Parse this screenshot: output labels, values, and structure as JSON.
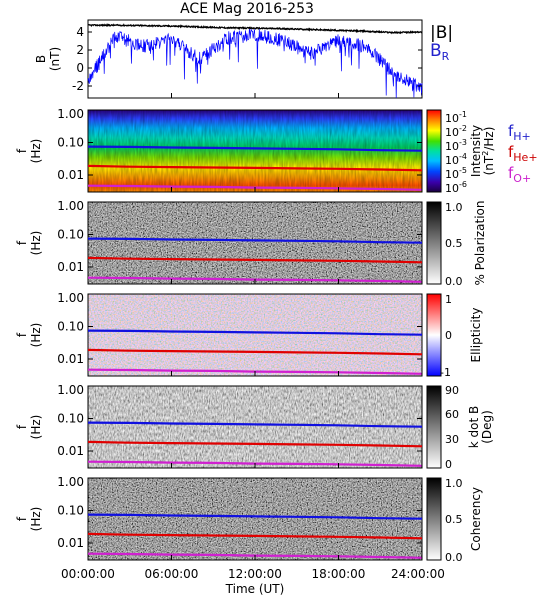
{
  "title": "ACE Mag 2016-253",
  "x_axis": {
    "label": "Time (UT)",
    "ticks": [
      "00:00:00",
      "06:00:00",
      "12:00:00",
      "18:00:00",
      "24:00:00"
    ]
  },
  "legend_top": {
    "b_total": "|B|",
    "b_r": "B",
    "b_r_sub": "R"
  },
  "freq_legend": [
    {
      "base": "f",
      "sub": "H+",
      "color": "#2222cc"
    },
    {
      "base": "f",
      "sub": "He+",
      "color": "#cc0000"
    },
    {
      "base": "f",
      "sub": "O+",
      "color": "#cc22cc"
    }
  ],
  "panels": {
    "b_field": {
      "ylabel_top": "B",
      "ylabel_bottom": "(nT)",
      "yticks": [
        "4",
        "2",
        "0",
        "-2"
      ]
    },
    "freq_ticks": [
      "1.00",
      "0.10",
      "0.01"
    ],
    "freq_label_top": "f",
    "freq_label_bottom": "(Hz)",
    "intensity": {
      "cbar_ticks": [
        "10",
        "10",
        "10",
        "10",
        "10",
        "10"
      ],
      "cbar_exps": [
        "-1",
        "-2",
        "-3",
        "-4",
        "-5",
        "-6"
      ],
      "cbar_label": "Intensity",
      "cbar_unit_pre": "(nT",
      "cbar_unit_exp": "2",
      "cbar_unit_post": "/Hz)"
    },
    "polarization": {
      "cbar_ticks": [
        "1.0",
        "0.5",
        "0.0"
      ],
      "cbar_label": "% Polarization"
    },
    "ellipticity": {
      "cbar_ticks": [
        "1",
        "0",
        "-1"
      ],
      "cbar_label": "Ellipticity"
    },
    "kdotb": {
      "cbar_ticks": [
        "90",
        "60",
        "30",
        "0"
      ],
      "cbar_label": "k dot B",
      "cbar_unit": "(Deg)"
    },
    "coherency": {
      "cbar_ticks": [
        "1.0",
        "0.5",
        "0.0"
      ],
      "cbar_label": "Coherency"
    }
  },
  "chart_data": [
    {
      "type": "line",
      "title": "ACE Mag 2016-253",
      "ylabel": "B (nT)",
      "xlabel": "Time (UT)",
      "x_hours": [
        0,
        2,
        4,
        6,
        8,
        10,
        12,
        14,
        16,
        18,
        20,
        22,
        24
      ],
      "ylim": [
        -3.5,
        5.5
      ],
      "series": [
        {
          "name": "|B|",
          "color": "#000000",
          "values": [
            4.9,
            4.9,
            4.85,
            4.8,
            4.7,
            4.6,
            4.55,
            4.5,
            4.4,
            4.3,
            4.2,
            4.05,
            4.1
          ]
        },
        {
          "name": "B_R",
          "color": "#0000ff",
          "values": [
            -1.5,
            3.6,
            2.5,
            3.2,
            1.0,
            3.4,
            3.8,
            3.1,
            1.6,
            3.2,
            2.4,
            -0.6,
            -2.5
          ]
        }
      ]
    },
    {
      "type": "heatmap",
      "name": "Intensity spectrogram",
      "ylabel": "f (Hz)",
      "ylim": [
        0.003,
        1.0
      ],
      "y_scale": "log",
      "colorbar": {
        "label": "Intensity (nT^2/Hz)",
        "range": [
          "1e-6",
          "1e-1"
        ]
      },
      "freq_lines": {
        "x_hours": [
          0,
          3,
          6,
          9,
          12,
          15,
          18,
          21,
          24
        ],
        "H+": [
          0.075,
          0.073,
          0.07,
          0.068,
          0.066,
          0.064,
          0.062,
          0.058,
          0.056
        ],
        "He+": [
          0.019,
          0.018,
          0.0175,
          0.017,
          0.0165,
          0.016,
          0.0155,
          0.0148,
          0.014
        ],
        "O+": [
          0.0047,
          0.0046,
          0.0044,
          0.0043,
          0.0041,
          0.004,
          0.0039,
          0.0037,
          0.0035
        ]
      }
    },
    {
      "type": "heatmap",
      "name": "% Polarization",
      "ylabel": "f (Hz)",
      "colorbar": {
        "label": "% Polarization",
        "range": [
          0.0,
          1.0
        ]
      }
    },
    {
      "type": "heatmap",
      "name": "Ellipticity",
      "ylabel": "f (Hz)",
      "colorbar": {
        "label": "Ellipticity",
        "range": [
          -1,
          1
        ]
      }
    },
    {
      "type": "heatmap",
      "name": "k dot B",
      "ylabel": "f (Hz)",
      "colorbar": {
        "label": "k dot B (Deg)",
        "range": [
          0,
          90
        ]
      }
    },
    {
      "type": "heatmap",
      "name": "Coherency",
      "ylabel": "f (Hz)",
      "colorbar": {
        "label": "Coherency",
        "range": [
          0.0,
          1.0
        ]
      }
    }
  ]
}
